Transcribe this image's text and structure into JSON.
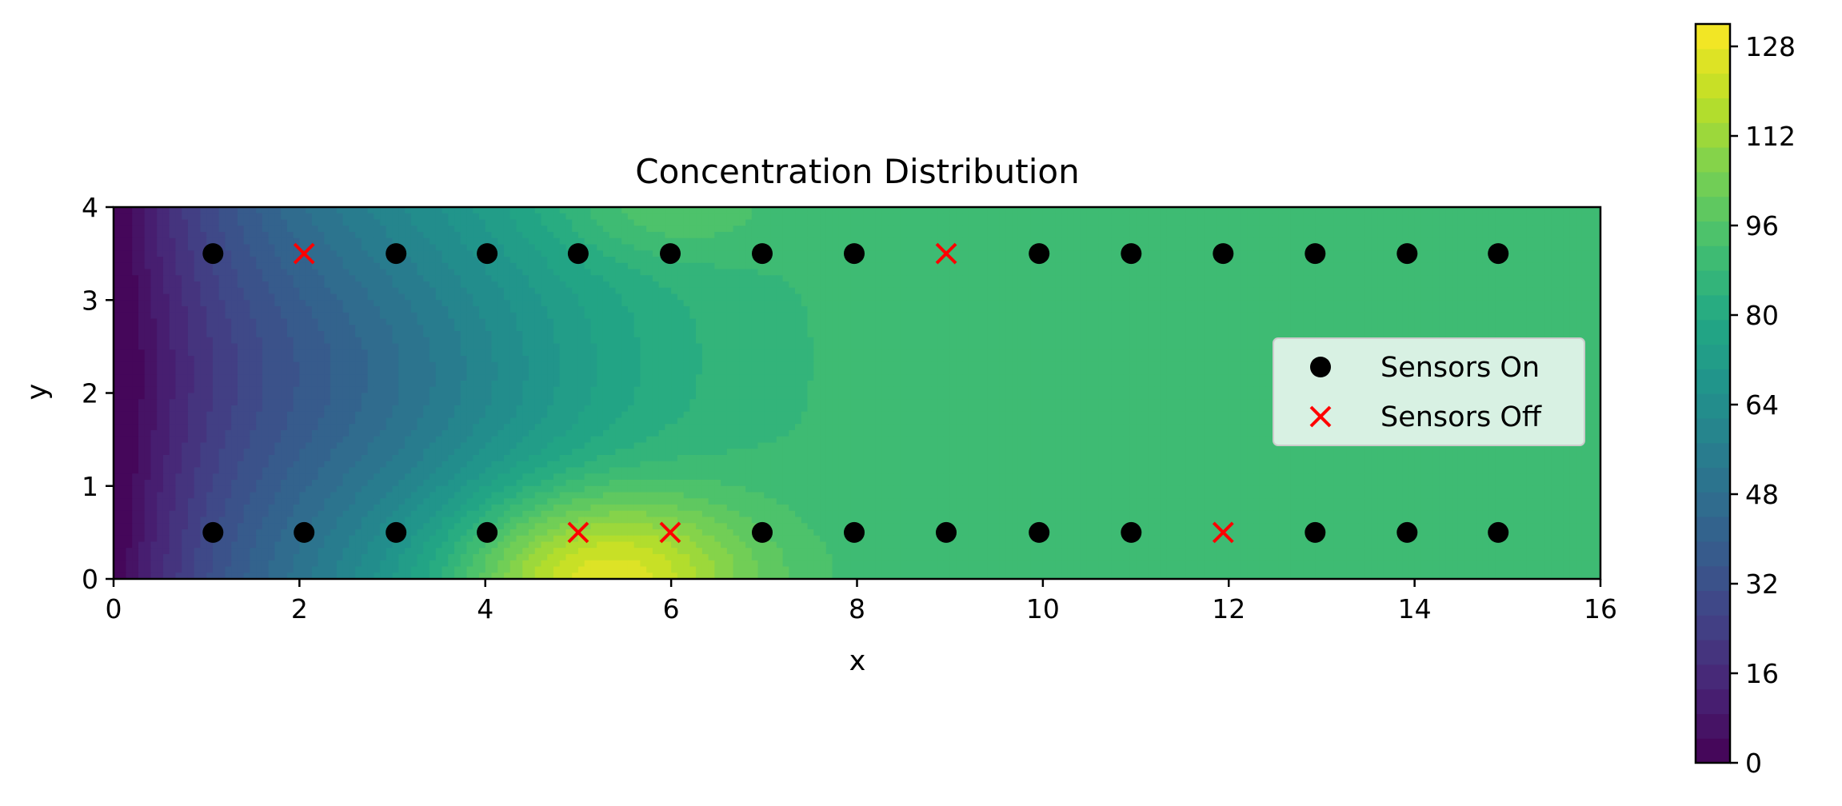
{
  "chart_data": {
    "type": "heatmap",
    "subtype": "filled-contour with scatter overlay",
    "title": "Concentration Distribution",
    "xlabel": "x",
    "ylabel": "y",
    "xlim": [
      0,
      16
    ],
    "ylim": [
      0,
      4
    ],
    "xticks": [
      0,
      2,
      4,
      6,
      8,
      10,
      12,
      14,
      16
    ],
    "yticks": [
      0,
      1,
      2,
      3,
      4
    ],
    "grid": false,
    "colormap": "viridis",
    "colorbar": {
      "min": 0,
      "max": 132,
      "ticks": [
        0,
        16,
        32,
        48,
        64,
        80,
        96,
        112,
        128
      ]
    },
    "field_description": "low concentration (~0) at x=0, rising downstream; maximum (~130) near x=5, y=0; plateau ~92 for x > 8",
    "series": [
      {
        "name": "Sensors On",
        "marker": "circle",
        "color": "#000000",
        "points": [
          [
            1.07,
            3.5
          ],
          [
            3.04,
            3.5
          ],
          [
            4.02,
            3.5
          ],
          [
            5.0,
            3.5
          ],
          [
            5.99,
            3.5
          ],
          [
            6.98,
            3.5
          ],
          [
            7.97,
            3.5
          ],
          [
            9.96,
            3.5
          ],
          [
            10.95,
            3.5
          ],
          [
            11.94,
            3.5
          ],
          [
            12.93,
            3.5
          ],
          [
            13.92,
            3.5
          ],
          [
            14.9,
            3.5
          ],
          [
            1.07,
            0.5
          ],
          [
            2.05,
            0.5
          ],
          [
            3.04,
            0.5
          ],
          [
            4.02,
            0.5
          ],
          [
            6.98,
            0.5
          ],
          [
            7.97,
            0.5
          ],
          [
            8.96,
            0.5
          ],
          [
            9.96,
            0.5
          ],
          [
            10.95,
            0.5
          ],
          [
            12.93,
            0.5
          ],
          [
            13.92,
            0.5
          ],
          [
            14.9,
            0.5
          ]
        ]
      },
      {
        "name": "Sensors Off",
        "marker": "x",
        "color": "#ff0000",
        "points": [
          [
            2.05,
            3.5
          ],
          [
            8.96,
            3.5
          ],
          [
            5.0,
            0.5
          ],
          [
            5.99,
            0.5
          ],
          [
            11.94,
            0.5
          ]
        ]
      }
    ],
    "legend_position": "center-right"
  }
}
